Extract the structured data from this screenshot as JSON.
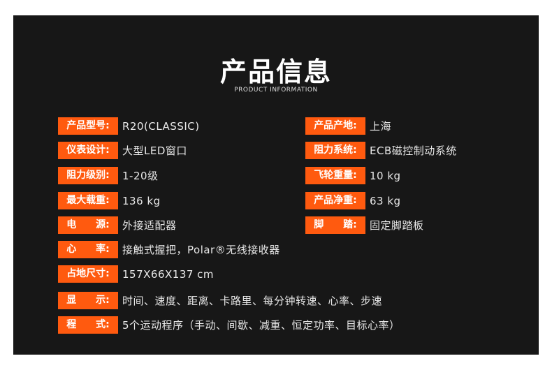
{
  "title": "产品信息",
  "subtitle": "PRODUCT INFORMATION",
  "accent": "#ff5a0f",
  "left": [
    {
      "label": "产品型号:",
      "value": "R20(CLASSIC)"
    },
    {
      "label": "仪表设计:",
      "value": "大型LED窗口"
    },
    {
      "label": "阻力级别:",
      "value": "1-20级"
    },
    {
      "label": "最大载重:",
      "value": "136 kg"
    },
    {
      "label": "电　　源:",
      "value": "外接适配器"
    }
  ],
  "right": [
    {
      "label": "产品产地:",
      "value": "上海"
    },
    {
      "label": "阻力系统:",
      "value": "ECB磁控制动系统"
    },
    {
      "label": "飞轮重量:",
      "value": "10 kg"
    },
    {
      "label": "产品净重:",
      "value": "63 kg"
    },
    {
      "label": "脚　　踏:",
      "value": "固定脚踏板"
    }
  ],
  "full": [
    {
      "label": "心　　率:",
      "value": "接触式握把，Polar®无线接收器"
    },
    {
      "label": "占地尺寸:",
      "value": "157X66X137 cm"
    },
    {
      "label": "显　　示:",
      "value": "时间、速度、距离、卡路里、每分钟转速、心率、步速"
    },
    {
      "label": "程　　式:",
      "value": "5个运动程序（手动、间歇、减重、恒定功率、目标心率）"
    }
  ]
}
